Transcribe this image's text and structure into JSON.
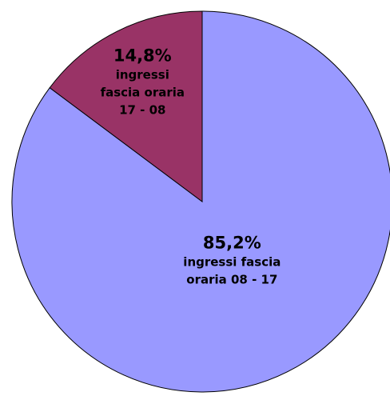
{
  "chart_data": {
    "type": "pie",
    "categories": [
      "ingressi fascia oraria 08 - 17",
      "ingressi fascia oraria 17 - 08"
    ],
    "values": [
      85.2,
      14.8
    ],
    "value_labels": [
      "85,2%",
      "14,8%"
    ],
    "colors": [
      "#9999ff",
      "#993366"
    ]
  }
}
